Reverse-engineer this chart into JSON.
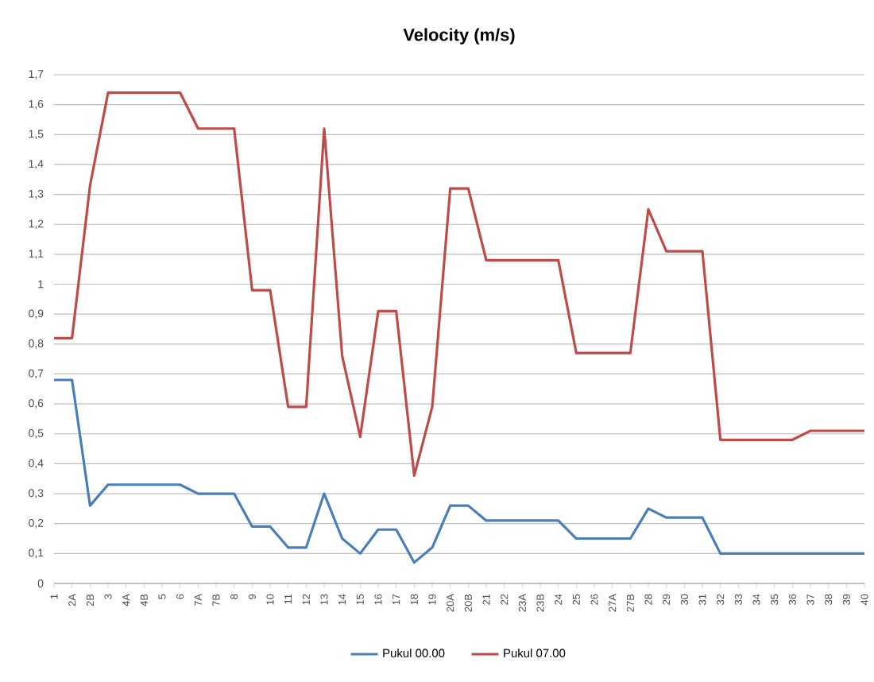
{
  "chart_data": {
    "type": "line",
    "title": "Velocity (m/s)",
    "categories": [
      "1",
      "2A",
      "2B",
      "3",
      "4A",
      "4B",
      "5",
      "6",
      "7A",
      "7B",
      "8",
      "9",
      "10",
      "11",
      "12",
      "13",
      "14",
      "15",
      "16",
      "17",
      "18",
      "19",
      "20A",
      "20B",
      "21",
      "22",
      "23A",
      "23B",
      "24",
      "25",
      "26",
      "27A",
      "27B",
      "28",
      "29",
      "30",
      "31",
      "32",
      "33",
      "34",
      "35",
      "36",
      "37",
      "38",
      "39",
      "40"
    ],
    "series": [
      {
        "name": "Pukul 00.00",
        "color": "#4a7ebb",
        "values": [
          0.68,
          0.68,
          0.26,
          0.33,
          0.33,
          0.33,
          0.33,
          0.33,
          0.3,
          0.3,
          0.3,
          0.19,
          0.19,
          0.12,
          0.12,
          0.3,
          0.15,
          0.1,
          0.18,
          0.18,
          0.07,
          0.12,
          0.26,
          0.26,
          0.21,
          0.21,
          0.21,
          0.21,
          0.21,
          0.15,
          0.15,
          0.15,
          0.15,
          0.25,
          0.22,
          0.22,
          0.22,
          0.1,
          0.1,
          0.1,
          0.1,
          0.1,
          0.1,
          0.1,
          0.1,
          0.1
        ]
      },
      {
        "name": "Pukul 07.00",
        "color": "#be4b48",
        "values": [
          0.82,
          0.82,
          1.33,
          1.64,
          1.64,
          1.64,
          1.64,
          1.64,
          1.52,
          1.52,
          1.52,
          0.98,
          0.98,
          0.59,
          0.59,
          1.52,
          0.76,
          0.49,
          0.91,
          0.91,
          0.36,
          0.59,
          1.32,
          1.32,
          1.08,
          1.08,
          1.08,
          1.08,
          1.08,
          0.77,
          0.77,
          0.77,
          0.77,
          1.25,
          1.11,
          1.11,
          1.11,
          0.48,
          0.48,
          0.48,
          0.48,
          0.48,
          0.51,
          0.51,
          0.51,
          0.51
        ]
      }
    ],
    "ylim": [
      0,
      1.7
    ],
    "yticks": [
      0,
      {
        "value": 0.1,
        "label": "0,1"
      },
      {
        "value": 0.2,
        "label": "0,2"
      },
      {
        "value": 0.3,
        "label": "0,3"
      },
      {
        "value": 0.4,
        "label": "0,4"
      },
      {
        "value": 0.5,
        "label": "0,5"
      },
      {
        "value": 0.6,
        "label": "0,6"
      },
      {
        "value": 0.7,
        "label": "0,7"
      },
      {
        "value": 0.8,
        "label": "0,8"
      },
      {
        "value": 0.9,
        "label": "0,9"
      },
      1,
      {
        "value": 1.1,
        "label": "1,1"
      },
      {
        "value": 1.2,
        "label": "1,2"
      },
      {
        "value": 1.3,
        "label": "1,3"
      },
      {
        "value": 1.4,
        "label": "1,4"
      },
      {
        "value": 1.5,
        "label": "1,5"
      },
      {
        "value": 1.6,
        "label": "1,6"
      },
      {
        "value": 1.7,
        "label": "1,7"
      }
    ],
    "grid": "y",
    "legend": "bottom",
    "marker": "none",
    "line_style": "solid"
  }
}
